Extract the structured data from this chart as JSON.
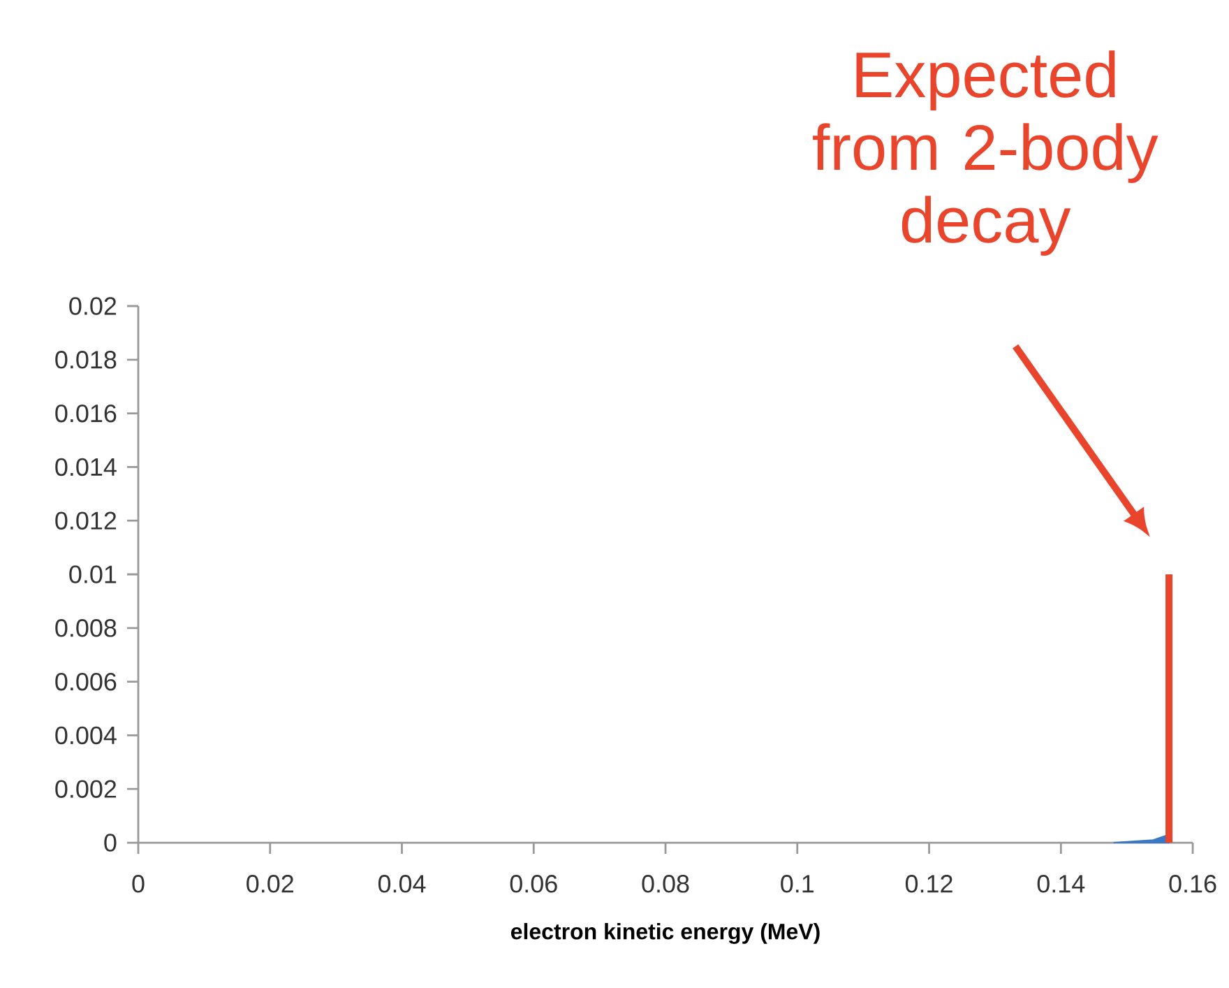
{
  "chart_data": {
    "type": "line",
    "xlabel": "electron kinetic energy (MeV)",
    "xlim": [
      0,
      0.16
    ],
    "ylim": [
      0,
      0.02
    ],
    "xticks": [
      0,
      0.02,
      0.04,
      0.06,
      0.08,
      0.1,
      0.12,
      0.14,
      0.16
    ],
    "yticks": [
      0,
      0.002,
      0.004,
      0.006,
      0.008,
      0.01,
      0.012,
      0.014,
      0.016,
      0.018,
      0.02
    ],
    "grid": false,
    "series": [
      {
        "type": "area",
        "color": "#3a78c4",
        "x": [
          0.148,
          0.154,
          0.1564
        ],
        "values": [
          0,
          0.0001,
          0.0003
        ]
      },
      {
        "color": "#e8452c",
        "x": [
          0.1564,
          0.1564
        ],
        "values": [
          0,
          0.01
        ]
      }
    ],
    "annotations": [
      "Expected from 2-body decay"
    ]
  }
}
